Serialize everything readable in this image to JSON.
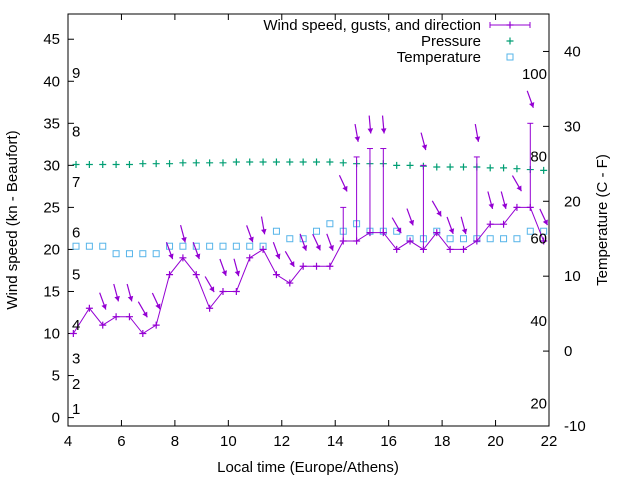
{
  "chart_data": {
    "type": "line",
    "xlabel": "Local time (Europe/Athens)",
    "ylabel": "Wind speed (kn - Beaufort)",
    "y2label": "Temperature (C - F)",
    "xlim": [
      4,
      22
    ],
    "ylim": [
      -1,
      48
    ],
    "y2lim": [
      -10,
      45
    ],
    "x_ticks": [
      "4",
      "6",
      "8",
      "10",
      "12",
      "14",
      "16",
      "18",
      "20",
      "22"
    ],
    "y_ticks": [
      "0",
      "5",
      "10",
      "15",
      "20",
      "25",
      "30",
      "35",
      "40",
      "45"
    ],
    "y2_ticks": [
      "-10",
      "0",
      "10",
      "20",
      "30",
      "40"
    ],
    "beaufort_labels": [
      {
        "y": 1,
        "label": "1"
      },
      {
        "y": 4,
        "label": "2"
      },
      {
        "y": 7,
        "label": "3"
      },
      {
        "y": 11,
        "label": "4"
      },
      {
        "y": 17,
        "label": "5"
      },
      {
        "y": 22,
        "label": "6"
      },
      {
        "y": 28,
        "label": "7"
      },
      {
        "y": 34,
        "label": "8"
      },
      {
        "y": 41,
        "label": "9"
      }
    ],
    "fahrenheit_labels": [
      {
        "y2": -7,
        "label": "20"
      },
      {
        "y2": 4,
        "label": "40"
      },
      {
        "y2": 15,
        "label": "60"
      },
      {
        "y2": 26,
        "label": "80"
      },
      {
        "y2": 37,
        "label": "100"
      }
    ],
    "legend": {
      "position": "top-right",
      "entries": [
        "Wind speed, gusts, and direction",
        "Pressure",
        "Temperature"
      ]
    },
    "colors": {
      "wind": "#9400d3",
      "pressure": "#009e73",
      "temperature": "#56b4e9",
      "axis": "#000000"
    },
    "series": [
      {
        "name": "Wind speed, gusts, and direction",
        "x": [
          4.2,
          4.8,
          5.3,
          5.8,
          6.3,
          6.8,
          7.3,
          7.8,
          8.3,
          8.8,
          9.3,
          9.8,
          10.3,
          10.8,
          11.3,
          11.8,
          12.3,
          12.8,
          13.3,
          13.8,
          14.3,
          14.8,
          15.3,
          15.8,
          16.3,
          16.8,
          17.3,
          17.8,
          18.3,
          18.8,
          19.3,
          19.8,
          20.3,
          20.8,
          21.3,
          21.8
        ],
        "y": [
          10,
          13,
          11,
          12,
          12,
          10,
          11,
          17,
          19,
          17,
          13,
          15,
          15,
          19,
          20,
          17,
          16,
          18,
          18,
          18,
          21,
          21,
          22,
          22,
          20,
          21,
          20,
          22,
          20,
          20,
          21,
          23,
          23,
          25,
          25,
          21
        ],
        "gust": [
          null,
          null,
          null,
          null,
          null,
          null,
          null,
          null,
          null,
          null,
          null,
          null,
          null,
          null,
          null,
          null,
          null,
          null,
          null,
          null,
          25,
          31,
          32,
          32,
          null,
          null,
          30,
          null,
          null,
          null,
          31,
          null,
          null,
          null,
          35,
          null
        ],
        "direction_deg": [
          null,
          null,
          340,
          345,
          345,
          330,
          335,
          340,
          345,
          340,
          330,
          340,
          345,
          340,
          350,
          340,
          330,
          340,
          335,
          340,
          335,
          350,
          355,
          355,
          330,
          340,
          345,
          330,
          340,
          345,
          350,
          345,
          345,
          330,
          340,
          335
        ]
      },
      {
        "name": "Pressure",
        "x": [
          4.3,
          4.8,
          5.3,
          5.8,
          6.3,
          6.8,
          7.3,
          7.8,
          8.3,
          8.8,
          9.3,
          9.8,
          10.3,
          10.8,
          11.3,
          11.8,
          12.3,
          12.8,
          13.3,
          13.8,
          14.3,
          14.8,
          15.3,
          15.8,
          16.3,
          16.8,
          17.3,
          17.8,
          18.3,
          18.8,
          19.3,
          19.8,
          20.3,
          20.8,
          21.3,
          21.8
        ],
        "y": [
          30.1,
          30.1,
          30.1,
          30.1,
          30.1,
          30.2,
          30.2,
          30.2,
          30.3,
          30.3,
          30.3,
          30.3,
          30.4,
          30.4,
          30.4,
          30.4,
          30.4,
          30.4,
          30.4,
          30.4,
          30.3,
          30.2,
          30.2,
          30.2,
          30.0,
          30.0,
          29.9,
          29.8,
          29.8,
          29.8,
          29.8,
          29.7,
          29.7,
          29.6,
          29.5,
          29.4
        ]
      },
      {
        "name": "Temperature",
        "axis": "y2",
        "x": [
          4.3,
          4.8,
          5.3,
          5.8,
          6.3,
          6.8,
          7.3,
          7.8,
          8.3,
          8.8,
          9.3,
          9.8,
          10.3,
          10.8,
          11.3,
          11.8,
          12.3,
          12.8,
          13.3,
          13.8,
          14.3,
          14.8,
          15.3,
          15.8,
          16.3,
          16.8,
          17.3,
          17.8,
          18.3,
          18.8,
          19.3,
          19.8,
          20.3,
          20.8,
          21.3,
          21.8
        ],
        "y": [
          14,
          14,
          14,
          13,
          13,
          13,
          13,
          14,
          14,
          14,
          14,
          14,
          14,
          14,
          14,
          16,
          15,
          15,
          16,
          17,
          16,
          17,
          16,
          16,
          16,
          15,
          15,
          16,
          15,
          15,
          15,
          15,
          15,
          15,
          16,
          16
        ]
      }
    ]
  }
}
